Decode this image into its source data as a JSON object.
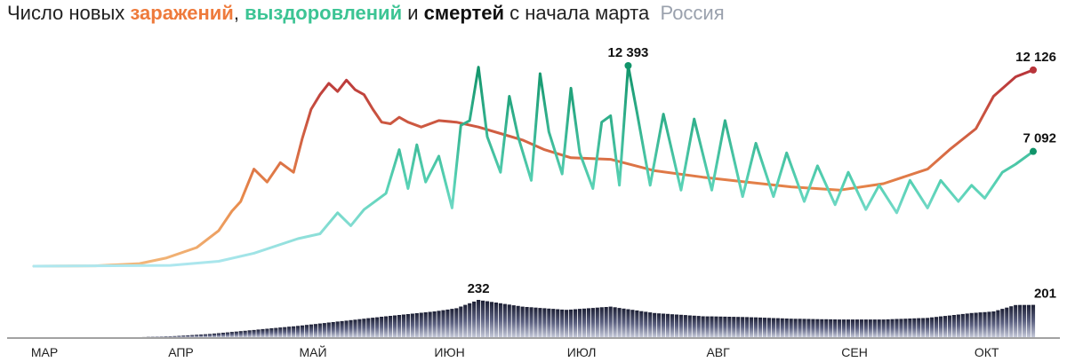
{
  "title": {
    "prefix": "Число новых ",
    "infections": "заражений",
    "comma": ",",
    "space": " ",
    "recoveries": "выздоровлений",
    "and": " и ",
    "deaths": "смертей",
    "suffix": " с начала марта",
    "region": "Россия"
  },
  "chart_data": {
    "type": "line",
    "x_start": "2020-03-01",
    "x_end": "2020-10-14",
    "x_ticks": [
      "МАР",
      "АПР",
      "МАЙ",
      "ИЮН",
      "ИЮЛ",
      "АВГ",
      "СЕН",
      "ОКТ"
    ],
    "series": [
      {
        "name": "заражений",
        "color": "#e06d3d",
        "points": [
          [
            "2020-03-01",
            0
          ],
          [
            "2020-03-15",
            20
          ],
          [
            "2020-03-25",
            160
          ],
          [
            "2020-03-31",
            500
          ],
          [
            "2020-04-07",
            1150
          ],
          [
            "2020-04-12",
            2200
          ],
          [
            "2020-04-15",
            3400
          ],
          [
            "2020-04-17",
            4000
          ],
          [
            "2020-04-20",
            6000
          ],
          [
            "2020-04-23",
            5200
          ],
          [
            "2020-04-26",
            6400
          ],
          [
            "2020-04-29",
            5800
          ],
          [
            "2020-05-01",
            7900
          ],
          [
            "2020-05-03",
            9700
          ],
          [
            "2020-05-05",
            10600
          ],
          [
            "2020-05-07",
            11300
          ],
          [
            "2020-05-09",
            10800
          ],
          [
            "2020-05-11",
            11500
          ],
          [
            "2020-05-13",
            10900
          ],
          [
            "2020-05-15",
            10600
          ],
          [
            "2020-05-17",
            9700
          ],
          [
            "2020-05-19",
            8900
          ],
          [
            "2020-05-21",
            8800
          ],
          [
            "2020-05-23",
            9200
          ],
          [
            "2020-05-25",
            8900
          ],
          [
            "2020-05-28",
            8600
          ],
          [
            "2020-06-01",
            9000
          ],
          [
            "2020-06-05",
            8900
          ],
          [
            "2020-06-10",
            8600
          ],
          [
            "2020-06-15",
            8200
          ],
          [
            "2020-06-20",
            7800
          ],
          [
            "2020-06-25",
            7200
          ],
          [
            "2020-07-01",
            6700
          ],
          [
            "2020-07-10",
            6600
          ],
          [
            "2020-07-20",
            5900
          ],
          [
            "2020-07-31",
            5500
          ],
          [
            "2020-08-10",
            5200
          ],
          [
            "2020-08-20",
            4900
          ],
          [
            "2020-08-31",
            4700
          ],
          [
            "2020-09-10",
            5100
          ],
          [
            "2020-09-20",
            6000
          ],
          [
            "2020-09-25",
            7200
          ],
          [
            "2020-10-01",
            8500
          ],
          [
            "2020-10-05",
            10500
          ],
          [
            "2020-10-10",
            11700
          ],
          [
            "2020-10-14",
            12126
          ]
        ]
      },
      {
        "name": "выздоровлений",
        "color": "#3cc494",
        "points": [
          [
            "2020-03-01",
            0
          ],
          [
            "2020-04-01",
            50
          ],
          [
            "2020-04-12",
            300
          ],
          [
            "2020-04-20",
            800
          ],
          [
            "2020-04-30",
            1700
          ],
          [
            "2020-05-05",
            2000
          ],
          [
            "2020-05-09",
            3300
          ],
          [
            "2020-05-12",
            2500
          ],
          [
            "2020-05-15",
            3500
          ],
          [
            "2020-05-20",
            4500
          ],
          [
            "2020-05-23",
            7200
          ],
          [
            "2020-05-25",
            4800
          ],
          [
            "2020-05-27",
            7500
          ],
          [
            "2020-05-29",
            5200
          ],
          [
            "2020-06-01",
            6800
          ],
          [
            "2020-06-04",
            3600
          ],
          [
            "2020-06-06",
            8700
          ],
          [
            "2020-06-08",
            9000
          ],
          [
            "2020-06-10",
            12300
          ],
          [
            "2020-06-12",
            8000
          ],
          [
            "2020-06-15",
            5800
          ],
          [
            "2020-06-17",
            10500
          ],
          [
            "2020-06-19",
            8000
          ],
          [
            "2020-06-22",
            5300
          ],
          [
            "2020-06-24",
            11900
          ],
          [
            "2020-06-26",
            8300
          ],
          [
            "2020-06-29",
            5700
          ],
          [
            "2020-07-01",
            11000
          ],
          [
            "2020-07-03",
            7000
          ],
          [
            "2020-07-06",
            4800
          ],
          [
            "2020-07-08",
            8900
          ],
          [
            "2020-07-10",
            9300
          ],
          [
            "2020-07-12",
            5000
          ],
          [
            "2020-07-14",
            12393
          ],
          [
            "2020-07-16",
            9500
          ],
          [
            "2020-07-19",
            5000
          ],
          [
            "2020-07-22",
            9400
          ],
          [
            "2020-07-26",
            4700
          ],
          [
            "2020-07-29",
            9100
          ],
          [
            "2020-08-02",
            4700
          ],
          [
            "2020-08-05",
            9000
          ],
          [
            "2020-08-09",
            4300
          ],
          [
            "2020-08-12",
            7600
          ],
          [
            "2020-08-16",
            4300
          ],
          [
            "2020-08-19",
            7000
          ],
          [
            "2020-08-23",
            4000
          ],
          [
            "2020-08-26",
            6200
          ],
          [
            "2020-08-30",
            3800
          ],
          [
            "2020-09-02",
            5800
          ],
          [
            "2020-09-06",
            3500
          ],
          [
            "2020-09-09",
            5000
          ],
          [
            "2020-09-13",
            3300
          ],
          [
            "2020-09-16",
            5300
          ],
          [
            "2020-09-20",
            3600
          ],
          [
            "2020-09-23",
            5300
          ],
          [
            "2020-09-27",
            4000
          ],
          [
            "2020-09-30",
            5000
          ],
          [
            "2020-10-03",
            4200
          ],
          [
            "2020-10-07",
            5800
          ],
          [
            "2020-10-10",
            6300
          ],
          [
            "2020-10-14",
            7092
          ]
        ]
      },
      {
        "name": "смертей",
        "color": "#2c3150",
        "points": [
          [
            "2020-03-01",
            0
          ],
          [
            "2020-03-25",
            0
          ],
          [
            "2020-04-01",
            5
          ],
          [
            "2020-04-10",
            20
          ],
          [
            "2020-04-20",
            45
          ],
          [
            "2020-04-30",
            70
          ],
          [
            "2020-05-10",
            100
          ],
          [
            "2020-05-20",
            130
          ],
          [
            "2020-05-31",
            160
          ],
          [
            "2020-06-05",
            180
          ],
          [
            "2020-06-10",
            232
          ],
          [
            "2020-06-20",
            190
          ],
          [
            "2020-06-30",
            170
          ],
          [
            "2020-07-10",
            190
          ],
          [
            "2020-07-20",
            150
          ],
          [
            "2020-07-31",
            130
          ],
          [
            "2020-08-10",
            125
          ],
          [
            "2020-08-20",
            115
          ],
          [
            "2020-08-31",
            110
          ],
          [
            "2020-09-10",
            110
          ],
          [
            "2020-09-20",
            120
          ],
          [
            "2020-09-30",
            150
          ],
          [
            "2020-10-05",
            160
          ],
          [
            "2020-10-10",
            200
          ],
          [
            "2020-10-14",
            201
          ]
        ]
      }
    ],
    "annotations": [
      {
        "series": "выздоровлений",
        "x": "2020-07-14",
        "y": 12393,
        "label": "12 393"
      },
      {
        "series": "заражений",
        "x": "2020-10-14",
        "y": 12126,
        "label": "12 126"
      },
      {
        "series": "выздоровлений",
        "x": "2020-10-14",
        "y": 7092,
        "label": "7 092"
      },
      {
        "series": "смертей",
        "x": "2020-06-10",
        "y": 232,
        "label": "232"
      },
      {
        "series": "смертей",
        "x": "2020-10-14",
        "y": 201,
        "label": "201"
      }
    ]
  }
}
